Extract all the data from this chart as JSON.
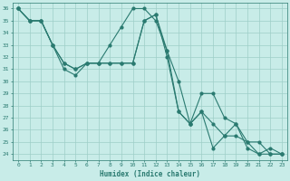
{
  "xlabel": "Humidex (Indice chaleur)",
  "bg_color": "#c8ece8",
  "grid_color": "#9ecec8",
  "line_color": "#2a7a70",
  "xlim": [
    -0.5,
    23.5
  ],
  "ylim": [
    23.5,
    36.5
  ],
  "line1_x": [
    0,
    1,
    2,
    3,
    4,
    5,
    6,
    7,
    8,
    9,
    10,
    11,
    12,
    13,
    14,
    15,
    16,
    17,
    18,
    19,
    20,
    21,
    22,
    23
  ],
  "line1_y": [
    36,
    35,
    35,
    33,
    31,
    30.5,
    31.5,
    31.5,
    33,
    34.5,
    36,
    36,
    35,
    32.5,
    30,
    26.5,
    29,
    29,
    27,
    26.5,
    25,
    24,
    24,
    24
  ],
  "line2_x": [
    0,
    1,
    2,
    3,
    4,
    5,
    6,
    7,
    8,
    9,
    10,
    11,
    12,
    13,
    14,
    15,
    16,
    17,
    18,
    19,
    20,
    21,
    22,
    23
  ],
  "line2_y": [
    36,
    35,
    35,
    33,
    31.5,
    31,
    31.5,
    31.5,
    31.5,
    31.5,
    31.5,
    35,
    35.5,
    32,
    27.5,
    26.5,
    27.5,
    26.5,
    25.5,
    25.5,
    25,
    25,
    24,
    24
  ],
  "line3_x": [
    0,
    1,
    2,
    3,
    4,
    5,
    6,
    7,
    8,
    9,
    10,
    11,
    12,
    13,
    14,
    15,
    16,
    17,
    18,
    19,
    20,
    21,
    22,
    23
  ],
  "line3_y": [
    36,
    35,
    35,
    33,
    31.5,
    31,
    31.5,
    31.5,
    31.5,
    31.5,
    31.5,
    35,
    35.5,
    32.5,
    27.5,
    26.5,
    27.5,
    24.5,
    25.5,
    26.5,
    24.5,
    24,
    24.5,
    24
  ]
}
